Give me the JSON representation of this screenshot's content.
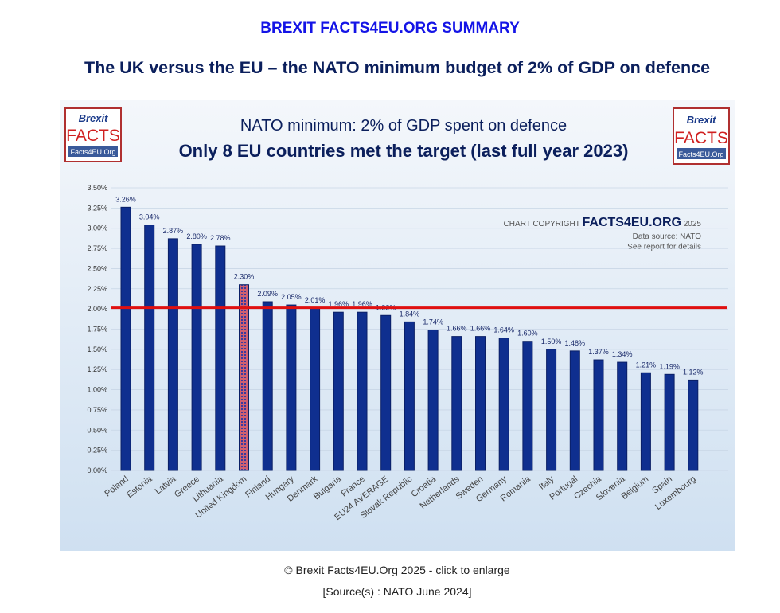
{
  "header": "BREXIT FACTS4EU.ORG SUMMARY",
  "subtitle": "The UK versus the EU – the NATO minimum budget of 2% of GDP on defence",
  "logo": {
    "line1": "Brexit",
    "line2": "FACTS",
    "line3": "Facts4EU.Org"
  },
  "copyright": {
    "prefix": "CHART COPYRIGHT",
    "brand": "FACTS4EU.ORG",
    "year": "2025",
    "source": "Data source: NATO",
    "note": "See report for details"
  },
  "caption": "© Brexit Facts4EU.Org 2025 - click to enlarge",
  "source": "[Source(s) : NATO June 2024]",
  "chart_data": {
    "type": "bar",
    "title": "NATO minimum: 2% of GDP spent on defence",
    "subtitle": "Only 8 EU countries met the target (last full year 2023)",
    "categories": [
      "Poland",
      "Estonia",
      "Latvia",
      "Greece",
      "Lithuania",
      "United Kingdom",
      "Finland",
      "Hungary",
      "Denmark",
      "Bulgaria",
      "France",
      "EU24 AVERAGE",
      "Slovak Republic",
      "Croatia",
      "Netherlands",
      "Sweden",
      "Germany",
      "Romania",
      "Italy",
      "Portugal",
      "Czechia",
      "Slovenia",
      "Belgium",
      "Spain",
      "Luxembourg"
    ],
    "values": [
      3.26,
      3.04,
      2.87,
      2.8,
      2.78,
      2.3,
      2.09,
      2.05,
      2.01,
      1.96,
      1.96,
      1.92,
      1.84,
      1.74,
      1.66,
      1.66,
      1.64,
      1.6,
      1.5,
      1.48,
      1.37,
      1.34,
      1.21,
      1.19,
      1.12
    ],
    "data_labels": [
      "3.26%",
      "3.04%",
      "2.87%",
      "2.80%",
      "2.78%",
      "2.30%",
      "2.09%",
      "2.05%",
      "2.01%",
      "1.96%",
      "1.96%",
      "1.92%",
      "1.84%",
      "1.74%",
      "1.66%",
      "1.66%",
      "1.64%",
      "1.60%",
      "1.50%",
      "1.48%",
      "1.37%",
      "1.34%",
      "1.21%",
      "1.19%",
      "1.12%"
    ],
    "highlight": "United Kingdom",
    "ylim": [
      0,
      3.5
    ],
    "yticks": [
      "0.00%",
      "0.25%",
      "0.50%",
      "0.75%",
      "1.00%",
      "1.25%",
      "1.50%",
      "1.75%",
      "2.00%",
      "2.25%",
      "2.50%",
      "2.75%",
      "3.00%",
      "3.25%",
      "3.50%"
    ],
    "target_line": 2.0,
    "grid": true,
    "colors": {
      "bar": "#0f2f8f",
      "highlight": "#c0505a",
      "target": "#e01010",
      "title": "#0b1f5c"
    }
  }
}
